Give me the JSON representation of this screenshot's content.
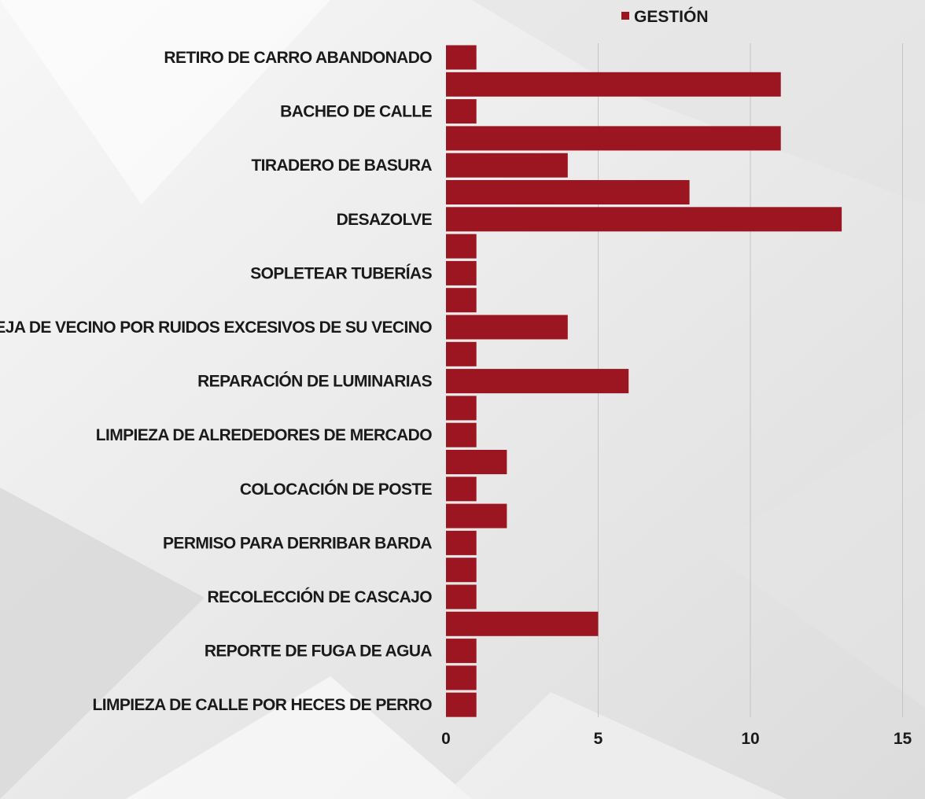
{
  "chart_data": {
    "type": "bar",
    "orientation": "horizontal",
    "legend": {
      "entries": [
        "GESTIÓN"
      ],
      "placement": "top-right"
    },
    "colors": {
      "bar": "#9b1620",
      "legend_marker": "#9b1620"
    },
    "xlim": [
      0,
      15
    ],
    "xticks": [
      0,
      5,
      10,
      15
    ],
    "grid": true,
    "categories": [
      "RETIRO DE CARRO ABANDONADO",
      "",
      "BACHEO DE CALLE",
      "",
      "TIRADERO DE BASURA",
      "",
      "DESAZOLVE",
      "",
      "SOPLETEAR TUBERÍAS",
      "",
      "QUEJA DE VECINO POR RUIDOS EXCESIVOS DE SU VECINO",
      "",
      "REPARACIÓN DE LUMINARIAS",
      "",
      "LIMPIEZA DE ALREDEDORES DE MERCADO",
      "",
      "COLOCACIÓN DE POSTE",
      "",
      "PERMISO PARA DERRIBAR BARDA",
      "",
      "RECOLECCIÓN DE CASCAJO",
      "",
      "REPORTE DE FUGA DE AGUA",
      "",
      "LIMPIEZA DE CALLE POR HECES DE PERRO"
    ],
    "series": [
      {
        "name": "GESTIÓN",
        "values": [
          1,
          11,
          1,
          11,
          4,
          8,
          13,
          1,
          1,
          1,
          4,
          1,
          6,
          1,
          1,
          2,
          1,
          2,
          1,
          1,
          1,
          5,
          1,
          1,
          1
        ]
      }
    ]
  }
}
